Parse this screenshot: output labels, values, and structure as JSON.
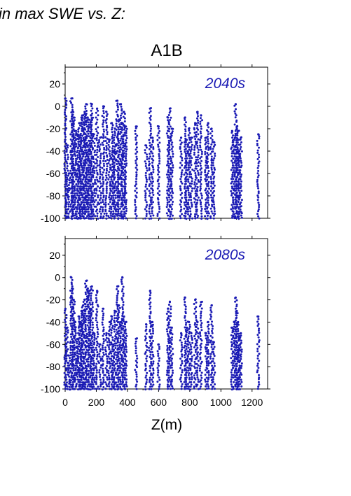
{
  "header": "in max SWE vs. Z:",
  "scenario": "A1B",
  "xlabel": "Z(m)",
  "x_ticks": [
    "0",
    "200",
    "400",
    "600",
    "800",
    "1000",
    "1200"
  ],
  "y_ticks": [
    "-100",
    "-80",
    "-60",
    "-40",
    "-20",
    "0",
    "20"
  ],
  "colors": {
    "points": "#1a1ab4",
    "panel_tag": "#1a1ab4",
    "axes": "#000000"
  },
  "chart_data": [
    {
      "type": "scatter",
      "title": "2040s",
      "xlabel": "Z(m)",
      "ylabel": "",
      "xlim": [
        0,
        1300
      ],
      "ylim": [
        -100,
        35
      ],
      "grid": false,
      "columns": [
        {
          "x": 2,
          "top": 7
        },
        {
          "x": 12,
          "top": -35
        },
        {
          "x": 24,
          "top": -60
        },
        {
          "x": 40,
          "top": 7
        },
        {
          "x": 48,
          "top": -5
        },
        {
          "x": 55,
          "top": -10
        },
        {
          "x": 65,
          "top": -22
        },
        {
          "x": 78,
          "top": -25
        },
        {
          "x": 90,
          "top": -15
        },
        {
          "x": 98,
          "top": -28
        },
        {
          "x": 105,
          "top": -10
        },
        {
          "x": 115,
          "top": -8
        },
        {
          "x": 125,
          "top": -5
        },
        {
          "x": 135,
          "top": 2
        },
        {
          "x": 145,
          "top": -10
        },
        {
          "x": 155,
          "top": -12
        },
        {
          "x": 165,
          "top": -8
        },
        {
          "x": 172,
          "top": 2
        },
        {
          "x": 185,
          "top": -25
        },
        {
          "x": 205,
          "top": -2
        },
        {
          "x": 225,
          "top": -28
        },
        {
          "x": 245,
          "top": 0
        },
        {
          "x": 265,
          "top": -5
        },
        {
          "x": 285,
          "top": -30
        },
        {
          "x": 300,
          "top": -15
        },
        {
          "x": 310,
          "top": -40
        },
        {
          "x": 320,
          "top": -20
        },
        {
          "x": 335,
          "top": 5
        },
        {
          "x": 345,
          "top": -12
        },
        {
          "x": 358,
          "top": 2
        },
        {
          "x": 368,
          "top": -15
        },
        {
          "x": 378,
          "top": -5
        },
        {
          "x": 390,
          "top": -18
        },
        {
          "x": 455,
          "top": -18
        },
        {
          "x": 520,
          "top": -35
        },
        {
          "x": 545,
          "top": -2
        },
        {
          "x": 560,
          "top": -28
        },
        {
          "x": 600,
          "top": -18
        },
        {
          "x": 660,
          "top": -10
        },
        {
          "x": 672,
          "top": -2
        },
        {
          "x": 685,
          "top": -20
        },
        {
          "x": 745,
          "top": -28
        },
        {
          "x": 770,
          "top": -10
        },
        {
          "x": 780,
          "top": -30
        },
        {
          "x": 795,
          "top": -20
        },
        {
          "x": 810,
          "top": -28
        },
        {
          "x": 835,
          "top": -15
        },
        {
          "x": 850,
          "top": -5
        },
        {
          "x": 872,
          "top": -8
        },
        {
          "x": 905,
          "top": -28
        },
        {
          "x": 918,
          "top": -15
        },
        {
          "x": 940,
          "top": -20
        },
        {
          "x": 955,
          "top": -32
        },
        {
          "x": 1072,
          "top": -22
        },
        {
          "x": 1085,
          "top": -30
        },
        {
          "x": 1095,
          "top": 2
        },
        {
          "x": 1102,
          "top": -18
        },
        {
          "x": 1110,
          "top": -22
        },
        {
          "x": 1118,
          "top": -40
        },
        {
          "x": 1128,
          "top": -28
        },
        {
          "x": 1240,
          "top": -25
        }
      ]
    },
    {
      "type": "scatter",
      "title": "2080s",
      "xlabel": "Z(m)",
      "ylabel": "",
      "xlim": [
        0,
        1300
      ],
      "ylim": [
        -100,
        35
      ],
      "grid": false,
      "columns": [
        {
          "x": 2,
          "top": -28
        },
        {
          "x": 12,
          "top": -45
        },
        {
          "x": 24,
          "top": -70
        },
        {
          "x": 40,
          "top": 0
        },
        {
          "x": 48,
          "top": -10
        },
        {
          "x": 55,
          "top": -20
        },
        {
          "x": 65,
          "top": -40
        },
        {
          "x": 78,
          "top": -55
        },
        {
          "x": 90,
          "top": -35
        },
        {
          "x": 98,
          "top": -40
        },
        {
          "x": 105,
          "top": -30
        },
        {
          "x": 115,
          "top": -25
        },
        {
          "x": 125,
          "top": -20
        },
        {
          "x": 135,
          "top": -3
        },
        {
          "x": 145,
          "top": -10
        },
        {
          "x": 155,
          "top": -12
        },
        {
          "x": 165,
          "top": -28
        },
        {
          "x": 172,
          "top": -8
        },
        {
          "x": 185,
          "top": -50
        },
        {
          "x": 205,
          "top": -12
        },
        {
          "x": 225,
          "top": -60
        },
        {
          "x": 245,
          "top": -28
        },
        {
          "x": 265,
          "top": -50
        },
        {
          "x": 285,
          "top": -40
        },
        {
          "x": 300,
          "top": -35
        },
        {
          "x": 310,
          "top": -60
        },
        {
          "x": 320,
          "top": -30
        },
        {
          "x": 335,
          "top": -8
        },
        {
          "x": 345,
          "top": -25
        },
        {
          "x": 358,
          "top": -40
        },
        {
          "x": 368,
          "top": 0
        },
        {
          "x": 378,
          "top": -35
        },
        {
          "x": 390,
          "top": -40
        },
        {
          "x": 455,
          "top": -55
        },
        {
          "x": 520,
          "top": -42
        },
        {
          "x": 545,
          "top": -12
        },
        {
          "x": 560,
          "top": -40
        },
        {
          "x": 600,
          "top": -60
        },
        {
          "x": 660,
          "top": -28
        },
        {
          "x": 672,
          "top": -22
        },
        {
          "x": 685,
          "top": -45
        },
        {
          "x": 745,
          "top": -50
        },
        {
          "x": 770,
          "top": -18
        },
        {
          "x": 780,
          "top": -45
        },
        {
          "x": 795,
          "top": -40
        },
        {
          "x": 810,
          "top": -50
        },
        {
          "x": 835,
          "top": -20
        },
        {
          "x": 850,
          "top": -40
        },
        {
          "x": 872,
          "top": -22
        },
        {
          "x": 905,
          "top": -50
        },
        {
          "x": 918,
          "top": -40
        },
        {
          "x": 940,
          "top": -25
        },
        {
          "x": 955,
          "top": -58
        },
        {
          "x": 1072,
          "top": -45
        },
        {
          "x": 1085,
          "top": -40
        },
        {
          "x": 1095,
          "top": -18
        },
        {
          "x": 1102,
          "top": -30
        },
        {
          "x": 1110,
          "top": -40
        },
        {
          "x": 1118,
          "top": -55
        },
        {
          "x": 1128,
          "top": -50
        },
        {
          "x": 1240,
          "top": -35
        }
      ]
    }
  ]
}
